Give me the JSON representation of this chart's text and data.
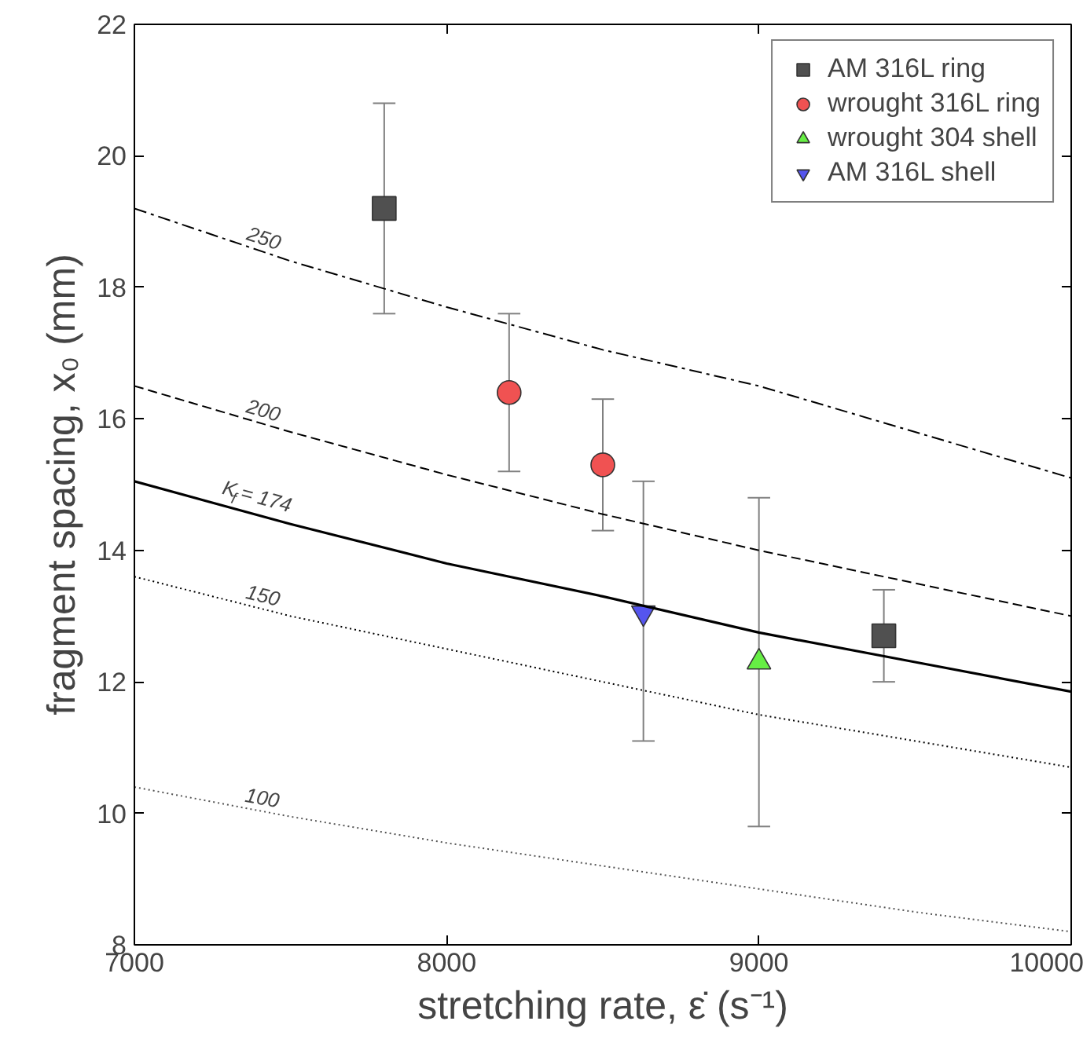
{
  "chart_data": {
    "type": "scatter",
    "xlabel": "stretching rate, ε̇ (s⁻¹)",
    "ylabel": "fragment spacing, x₀ (mm)",
    "xlim": [
      7000,
      10000
    ],
    "xticks": [
      7000,
      8000,
      9000,
      10000
    ],
    "ylim": [
      8,
      22
    ],
    "yticks": [
      8,
      10,
      12,
      14,
      16,
      18,
      20,
      22
    ],
    "grid": false,
    "legend": "top right",
    "series": [
      {
        "name": "AM 316L ring",
        "marker": "square",
        "color": "#505050",
        "x": [
          7800,
          9400
        ],
        "values": [
          19.2,
          12.7
        ],
        "errors": [
          [
            17.6,
            20.8
          ],
          [
            12.0,
            13.4
          ]
        ]
      },
      {
        "name": "wrought 316L ring",
        "marker": "circle",
        "color": "#f05252",
        "x": [
          8200,
          8500
        ],
        "values": [
          16.4,
          15.3
        ],
        "errors": [
          [
            15.2,
            17.6
          ],
          [
            14.3,
            16.3
          ]
        ]
      },
      {
        "name": "wrought 304 shell",
        "marker": "triangle",
        "color": "#66ee44",
        "x": [
          9000
        ],
        "values": [
          12.3
        ],
        "errors": [
          [
            9.8,
            14.8
          ]
        ]
      },
      {
        "name": "AM 316L shell",
        "color": "#5555ee",
        "x": [
          8630
        ],
        "values": [
          13.05
        ],
        "errors": [
          [
            11.1,
            15.05
          ]
        ]
      },
      {
        "name": "250",
        "type": "line",
        "line_style": "dashdot",
        "color": "#000000",
        "x": [
          7000,
          7500,
          8000,
          8500,
          9000,
          9500,
          10000
        ],
        "values": [
          19.2,
          18.4,
          17.7,
          17.05,
          16.5,
          15.8,
          15.1
        ]
      },
      {
        "name": "200",
        "type": "line",
        "line_style": "dashed",
        "color": "#000000",
        "x": [
          7000,
          7500,
          8000,
          8500,
          9000,
          9500,
          10000
        ],
        "values": [
          16.5,
          15.8,
          15.15,
          14.55,
          14.0,
          13.5,
          13.0
        ]
      },
      {
        "name": "K$_{f}$ = 174",
        "type": "line",
        "line_style": "solid",
        "color": "#000000",
        "x": [
          7000,
          7500,
          8000,
          8500,
          9000,
          9500,
          10000
        ],
        "values": [
          15.05,
          14.4,
          13.8,
          13.3,
          12.75,
          12.3,
          11.85
        ]
      },
      {
        "name": "150",
        "type": "line",
        "line_style": "dotted",
        "color": "#000000",
        "x": [
          7000,
          7500,
          8000,
          8500,
          9000,
          9500,
          10000
        ],
        "values": [
          13.6,
          13.0,
          12.5,
          12.0,
          11.5,
          11.1,
          10.7
        ]
      },
      {
        "name": "100",
        "type": "line",
        "line_style": "dotted",
        "color": "#555555",
        "x": [
          7000,
          7500,
          8000,
          8500,
          9000,
          9500,
          10000
        ],
        "values": [
          10.4,
          9.95,
          9.55,
          9.2,
          8.85,
          8.5,
          8.2
        ]
      }
    ]
  }
}
